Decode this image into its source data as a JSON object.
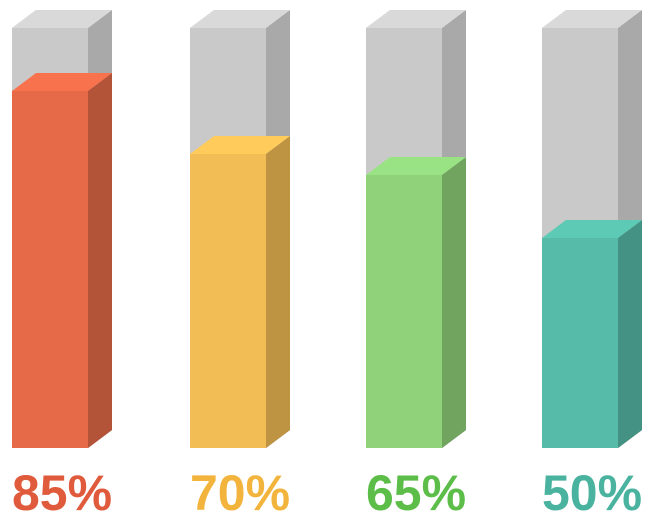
{
  "chart_data": {
    "type": "bar",
    "values": [
      85,
      70,
      65,
      50
    ],
    "value_labels": [
      "85%",
      "70%",
      "65%",
      "50%"
    ],
    "colors": [
      "#e66a48",
      "#f3bd55",
      "#8fd27a",
      "#56bba8"
    ],
    "label_colors": [
      "#e05a3c",
      "#f2b43c",
      "#5cbd48",
      "#4ab3a0"
    ],
    "ylim": [
      0,
      100
    ]
  }
}
